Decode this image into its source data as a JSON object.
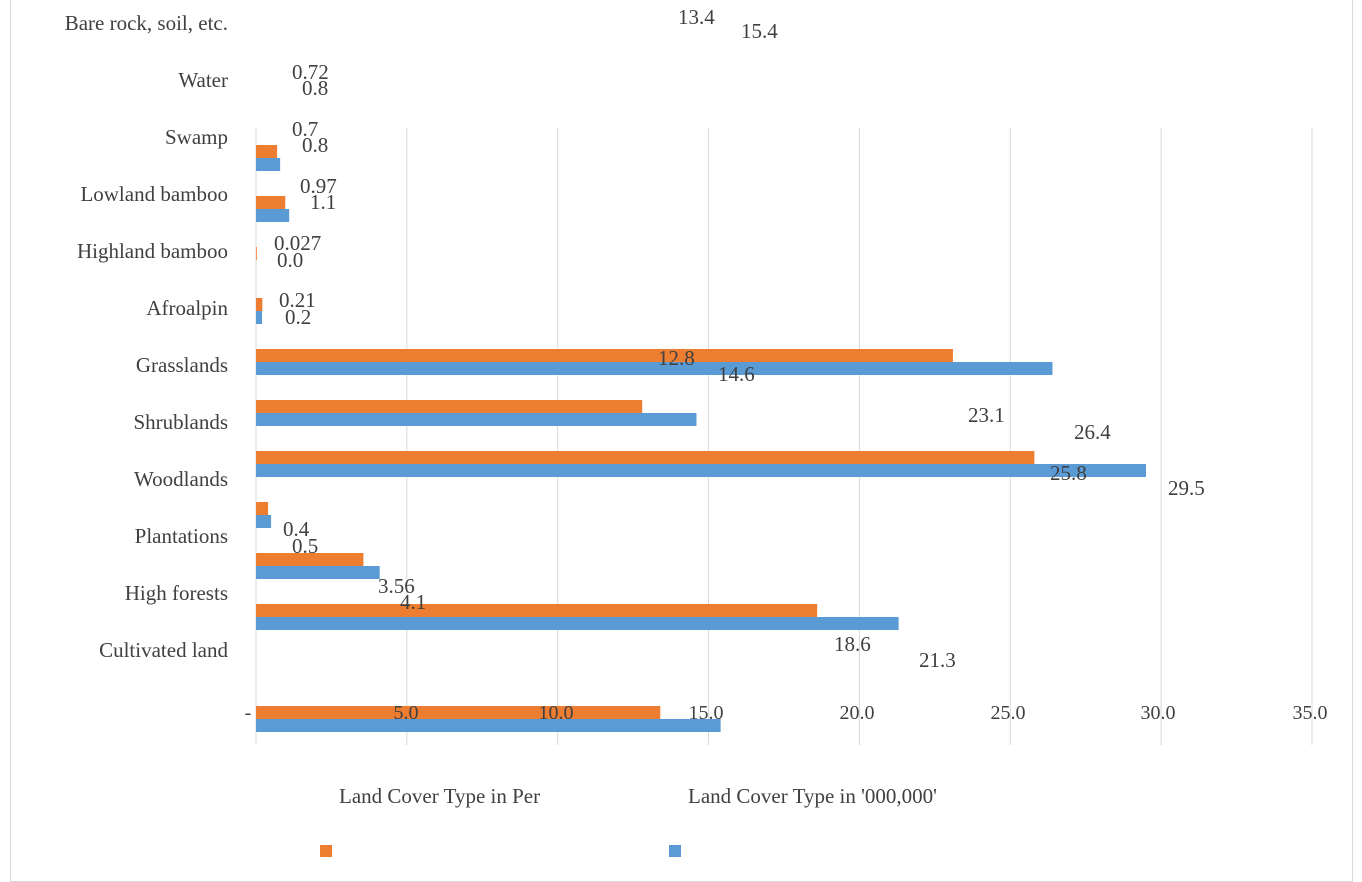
{
  "chart_data": {
    "type": "bar",
    "orientation": "horizontal",
    "title": "",
    "xlabel": "",
    "ylabel": "",
    "xlim": [
      0,
      35
    ],
    "x_ticks": [
      "-",
      "5.0",
      "10.0",
      "15.0",
      "20.0",
      "25.0",
      "30.0",
      "35.0"
    ],
    "grid": true,
    "legend_position": "bottom",
    "categories": [
      "Bare rock, soil, etc.",
      "Water",
      "Swamp",
      "Lowland bamboo",
      "Highland bamboo",
      "Afroalpin",
      "Grasslands",
      "Shrublands",
      "Woodlands",
      "Plantations",
      "High forests",
      "Cultivated land"
    ],
    "series": [
      {
        "name": "Land Cover Type in Per",
        "color": "#ed7d31",
        "values": [
          13.4,
          0.72,
          0.7,
          0.97,
          0.027,
          0.21,
          12.8,
          23.1,
          25.8,
          0.4,
          3.56,
          18.6
        ],
        "labels": [
          "13.4",
          "0.72",
          "0.7",
          "0.97",
          "0.027",
          "0.21",
          "12.8",
          "23.1",
          "25.8",
          "0.4",
          "3.56",
          "18.6"
        ]
      },
      {
        "name": "Land Cover Type in '000,000'",
        "color": "#5b9bd5",
        "values": [
          15.4,
          0.8,
          0.8,
          1.1,
          0.0,
          0.2,
          14.6,
          26.4,
          29.5,
          0.5,
          4.1,
          21.3
        ],
        "labels": [
          "15.4",
          "0.8",
          "0.8",
          "1.1",
          "0.0",
          "0.2",
          "14.6",
          "26.4",
          "29.5",
          "0.5",
          "4.1",
          "21.3"
        ]
      }
    ]
  }
}
